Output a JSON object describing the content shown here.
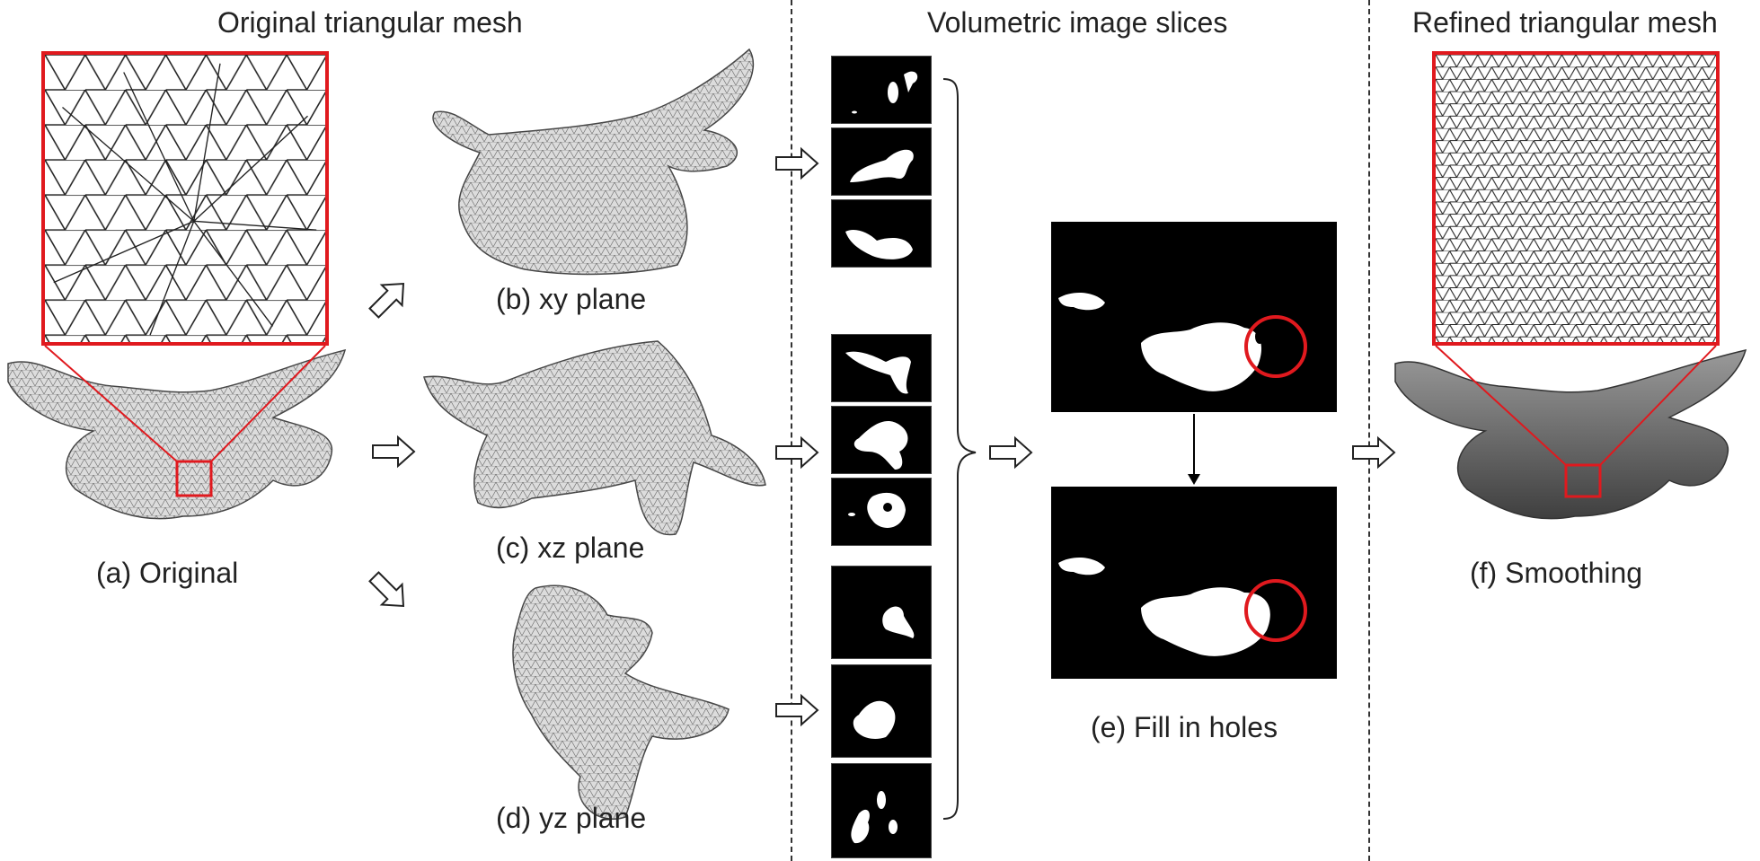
{
  "headers": {
    "original": "Original triangular mesh",
    "slices": "Volumetric image slices",
    "refined": "Refined triangular mesh"
  },
  "labels": {
    "a": "(a) Original",
    "b": "(b) xy plane",
    "c": "(c) xz plane",
    "d": "(d) yz plane",
    "e": "(e) Fill in holes",
    "f": "(f) Smoothing"
  },
  "colors": {
    "highlight": "#e0191e",
    "mesh_fill": "#d9d9d9",
    "mesh_line": "#555555",
    "slice_bg": "#000000",
    "slice_fg": "#ffffff"
  }
}
